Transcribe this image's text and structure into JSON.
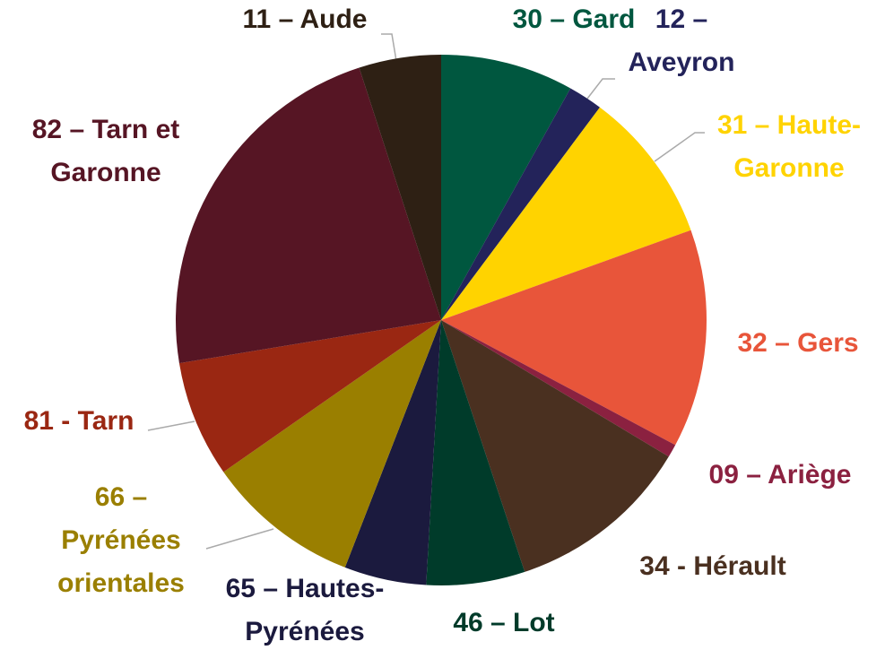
{
  "chart_data": {
    "type": "pie",
    "categories": [
      "30 – Gard",
      "12 – Aveyron",
      "31 – Haute-Garonne",
      "32 – Gers",
      "09 – Ariège",
      "34 - Hérault",
      "46 – Lot",
      "65 – Hautes-Pyrénées",
      "66 – Pyrénées orientales",
      "81 - Tarn",
      "82 – Tarn et Garonne",
      "11 – Aude"
    ],
    "values": [
      8.1,
      2.1,
      9.3,
      13.3,
      0.8,
      11.3,
      6.0,
      5.0,
      9.4,
      7.1,
      22.6,
      5.0
    ],
    "colors": [
      "#00573f",
      "#23235a",
      "#ffd300",
      "#e8553a",
      "#8b2140",
      "#4a3020",
      "#003b2a",
      "#1b1a3e",
      "#9a7f00",
      "#9a2712",
      "#561524",
      "#2e2014"
    ]
  }
}
